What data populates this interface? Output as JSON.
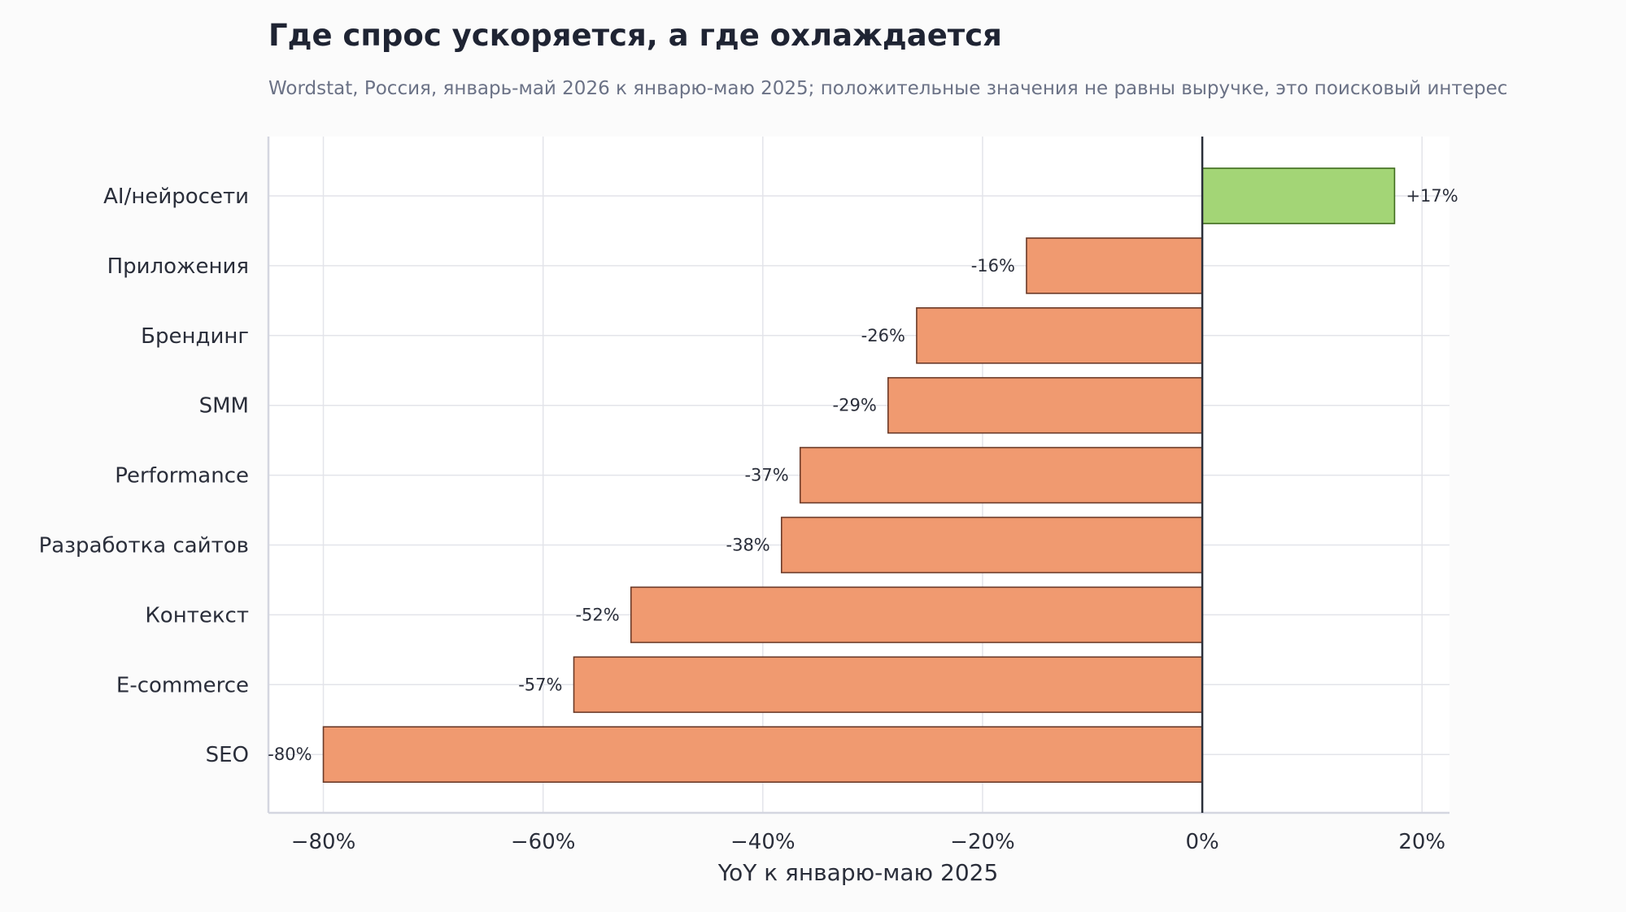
{
  "chart_data": {
    "type": "bar",
    "orientation": "horizontal",
    "title": "Где спрос ускоряется, а где охлаждается",
    "subtitle": "Wordstat, Россия, январь-май 2026 к январю-маю 2025; положительные значения не равны выручке, это поисковый интерес",
    "xlabel": "YoY к январю-маю 2025",
    "ylabel": "",
    "xlim": [
      -85,
      22.5
    ],
    "xticks": [
      -80,
      -60,
      -40,
      -20,
      0,
      20
    ],
    "xtick_labels": [
      "−80%",
      "−60%",
      "−40%",
      "−20%",
      "0%",
      "20%"
    ],
    "grid": true,
    "categories": [
      "AI/нейросети",
      "Приложения",
      "Брендинг",
      "SMM",
      "Performance",
      "Разработка сайтов",
      "Контекст",
      "E-commerce",
      "SEO"
    ],
    "values": [
      17.5,
      -16,
      -26,
      -28.6,
      -36.6,
      -38.3,
      -52,
      -57.2,
      -80
    ],
    "data_labels": [
      "+17%",
      "-16%",
      "-26%",
      "-29%",
      "-37%",
      "-38%",
      "-52%",
      "-57%",
      "-80%"
    ],
    "colors": {
      "positive": "#a3d576",
      "positive_edge": "#3e6b1c",
      "negative": "#f09a70",
      "negative_edge": "#6b3a28",
      "zero_line": "#2a2f3a",
      "grid": "#e3e4ea",
      "axis": "#d4d6e0",
      "text": "#2a2e3a"
    }
  }
}
